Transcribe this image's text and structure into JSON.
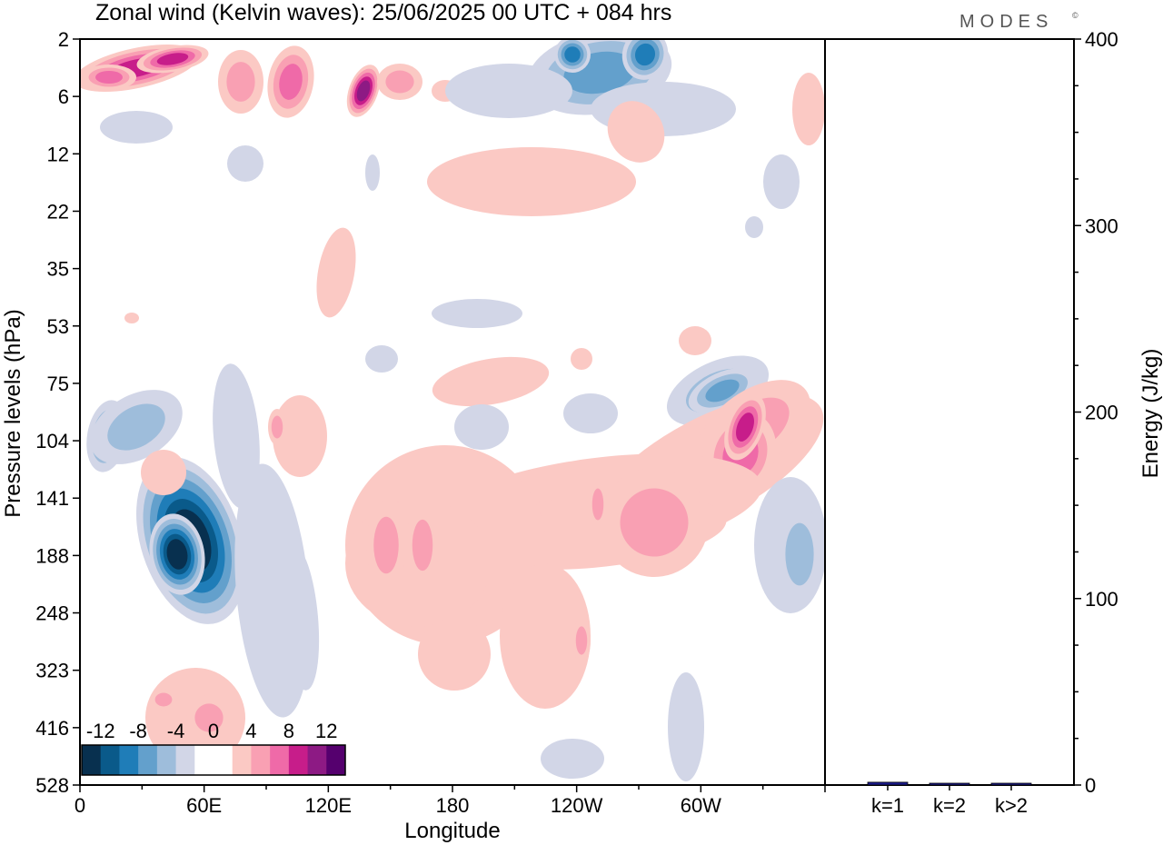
{
  "header": {
    "title": "Zonal wind (Kelvin waves):  25/06/2025  00 UTC  + 084 hrs",
    "brand": "MODES",
    "brand_mark": "©"
  },
  "chart_data": [
    {
      "type": "heatmap",
      "title": "Zonal wind (Kelvin waves):  25/06/2025  00 UTC  + 084 hrs",
      "xlabel": "Longitude",
      "ylabel": "Pressure levels (hPa)",
      "x_ticks": [
        "0",
        "60E",
        "120E",
        "180",
        "120W",
        "60W"
      ],
      "y_ticks": [
        "2",
        "6",
        "12",
        "22",
        "35",
        "53",
        "75",
        "104",
        "141",
        "188",
        "248",
        "323",
        "416",
        "528"
      ],
      "xlim": [
        0,
        360
      ],
      "colorbar": {
        "labels": [
          "-12",
          "-8",
          "-4",
          "0",
          "4",
          "8",
          "12"
        ],
        "colors": [
          "#08304f",
          "#0a5a8a",
          "#1f7db8",
          "#63a0cc",
          "#9ebddb",
          "#d2d6e7",
          "#ffffff",
          "#ffffff",
          "#fbc9c4",
          "#f9a0b3",
          "#ef6aa8",
          "#c71d8a",
          "#8d1a84",
          "#55006e"
        ],
        "levels": [
          -14,
          -12,
          -10,
          -8,
          -6,
          -4,
          -2,
          0,
          2,
          4,
          6,
          8,
          10,
          12,
          14
        ]
      },
      "features": [
        {
          "name": "easterly-core",
          "lon": 45,
          "level": "188",
          "value": -12
        },
        {
          "name": "westerly-tilted-band",
          "lon": 330,
          "level": "104",
          "value": 8
        },
        {
          "name": "upper-westerly",
          "lon": 25,
          "level": "2",
          "value": 8
        },
        {
          "name": "upper-westerly-2",
          "lon": 132,
          "level": "6",
          "value": 10
        },
        {
          "name": "upper-easterly",
          "lon": 265,
          "level": "2",
          "value": -8
        },
        {
          "name": "troposphere-westerly",
          "lon": 150,
          "level": "188",
          "value": 6
        }
      ]
    },
    {
      "type": "bar",
      "ylabel": "Energy (J/kg)",
      "categories": [
        "k=1",
        "k=2",
        "k>2"
      ],
      "values": [
        1.5,
        0.4,
        0.6
      ],
      "ylim": [
        0,
        400
      ],
      "y_ticks": [
        "0",
        "100",
        "200",
        "300",
        "400"
      ],
      "bar_color": "#1a1a8c"
    }
  ]
}
